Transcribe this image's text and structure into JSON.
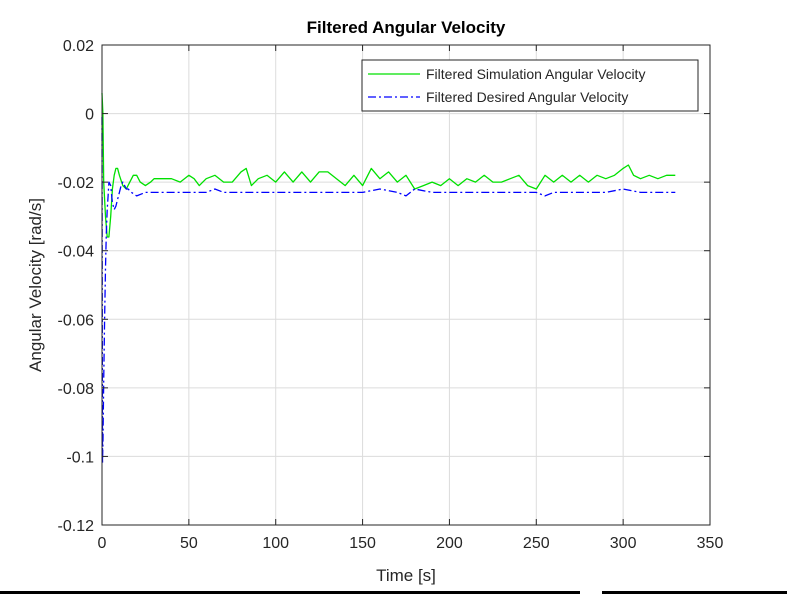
{
  "chart_data": {
    "type": "line",
    "title": "Filtered Angular Velocity",
    "xlabel": "Time [s]",
    "ylabel": "Angular Velocity [rad/s]",
    "xlim": [
      0,
      350
    ],
    "ylim": [
      -0.12,
      0.02
    ],
    "xticks": [
      0,
      50,
      100,
      150,
      200,
      250,
      300,
      350
    ],
    "yticks": [
      0.02,
      0,
      -0.02,
      -0.04,
      -0.06,
      -0.08,
      -0.1,
      -0.12
    ],
    "xtick_labels": [
      "0",
      "50",
      "100",
      "150",
      "200",
      "250",
      "300",
      "350"
    ],
    "ytick_labels": [
      "0.02",
      "0",
      "-0.02",
      "-0.04",
      "-0.06",
      "-0.08",
      "-0.1",
      "-0.12"
    ],
    "grid": true,
    "legend_position": "top-right",
    "series": [
      {
        "name": "Filtered Simulation Angular Velocity",
        "color": "#00e000",
        "style": "solid",
        "x": [
          0,
          0.5,
          1,
          2,
          3,
          4,
          5,
          6,
          7,
          8,
          9,
          10,
          12,
          14,
          16,
          18,
          20,
          22,
          25,
          28,
          30,
          35,
          40,
          45,
          50,
          53,
          56,
          60,
          65,
          70,
          75,
          80,
          83,
          86,
          90,
          95,
          100,
          105,
          110,
          115,
          120,
          125,
          130,
          135,
          140,
          145,
          150,
          155,
          160,
          165,
          170,
          175,
          180,
          185,
          190,
          195,
          200,
          205,
          210,
          215,
          220,
          225,
          230,
          235,
          240,
          245,
          250,
          255,
          260,
          265,
          270,
          275,
          280,
          285,
          290,
          295,
          300,
          303,
          306,
          310,
          315,
          320,
          325,
          330
        ],
        "y": [
          0.006,
          0.0,
          -0.02,
          -0.03,
          -0.036,
          -0.036,
          -0.03,
          -0.022,
          -0.018,
          -0.016,
          -0.016,
          -0.018,
          -0.021,
          -0.022,
          -0.02,
          -0.018,
          -0.018,
          -0.02,
          -0.021,
          -0.02,
          -0.019,
          -0.019,
          -0.019,
          -0.02,
          -0.018,
          -0.019,
          -0.021,
          -0.019,
          -0.018,
          -0.02,
          -0.02,
          -0.017,
          -0.016,
          -0.021,
          -0.019,
          -0.018,
          -0.02,
          -0.017,
          -0.02,
          -0.017,
          -0.02,
          -0.017,
          -0.017,
          -0.019,
          -0.021,
          -0.018,
          -0.021,
          -0.016,
          -0.019,
          -0.017,
          -0.02,
          -0.018,
          -0.022,
          -0.021,
          -0.02,
          -0.021,
          -0.019,
          -0.021,
          -0.019,
          -0.02,
          -0.018,
          -0.02,
          -0.02,
          -0.019,
          -0.018,
          -0.021,
          -0.022,
          -0.018,
          -0.02,
          -0.018,
          -0.02,
          -0.018,
          -0.02,
          -0.018,
          -0.019,
          -0.018,
          -0.016,
          -0.015,
          -0.018,
          -0.019,
          -0.018,
          -0.019,
          -0.018,
          -0.018
        ]
      },
      {
        "name": "Filtered Desired Angular Velocity",
        "color": "#0000ff",
        "style": "dashdot",
        "x": [
          0,
          0.3,
          0.6,
          1,
          1.5,
          2,
          2.5,
          3,
          3.5,
          4,
          5,
          6,
          7,
          8,
          9,
          10,
          11,
          12,
          13,
          14,
          15,
          17,
          20,
          25,
          30,
          40,
          50,
          60,
          65,
          70,
          80,
          90,
          100,
          110,
          120,
          130,
          140,
          150,
          160,
          170,
          175,
          180,
          190,
          200,
          210,
          220,
          230,
          240,
          250,
          255,
          260,
          270,
          280,
          290,
          300,
          310,
          320,
          330
        ],
        "y": [
          -0.001,
          -0.102,
          -0.095,
          -0.078,
          -0.06,
          -0.045,
          -0.035,
          -0.028,
          -0.024,
          -0.02,
          -0.021,
          -0.026,
          -0.028,
          -0.027,
          -0.025,
          -0.023,
          -0.021,
          -0.02,
          -0.021,
          -0.022,
          -0.022,
          -0.023,
          -0.024,
          -0.023,
          -0.023,
          -0.023,
          -0.023,
          -0.023,
          -0.022,
          -0.023,
          -0.023,
          -0.023,
          -0.023,
          -0.023,
          -0.023,
          -0.023,
          -0.023,
          -0.023,
          -0.022,
          -0.023,
          -0.024,
          -0.022,
          -0.023,
          -0.023,
          -0.023,
          -0.023,
          -0.023,
          -0.023,
          -0.023,
          -0.024,
          -0.023,
          -0.023,
          -0.023,
          -0.023,
          -0.022,
          -0.023,
          -0.023,
          -0.023
        ]
      }
    ]
  }
}
